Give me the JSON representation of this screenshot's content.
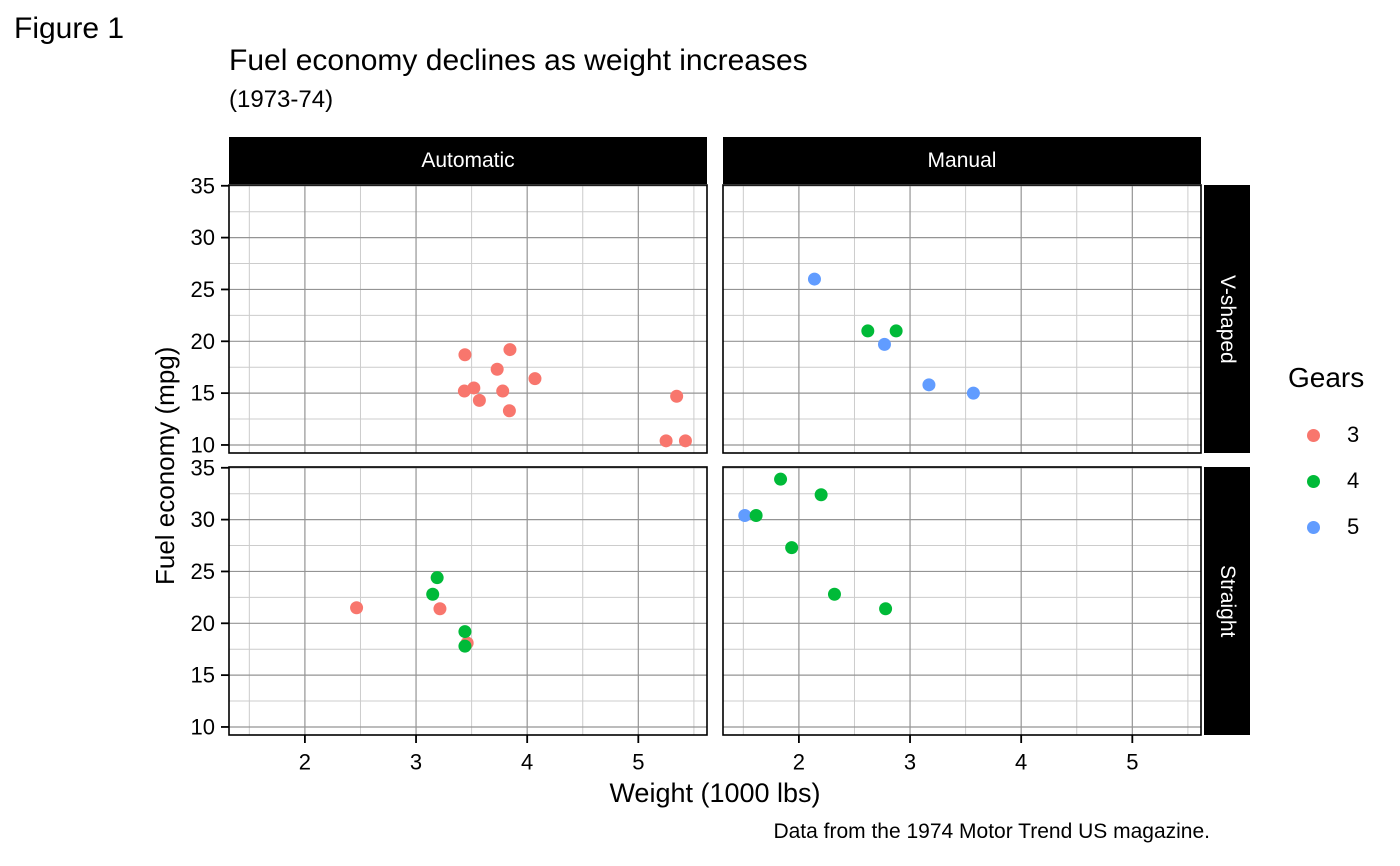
{
  "figure_label": "Figure 1",
  "title": "Fuel economy declines as weight increases",
  "subtitle": "(1973-74)",
  "caption": "Data from the 1974 Motor Trend US magazine.",
  "axes": {
    "x_title": "Weight (1000 lbs)",
    "y_title": "Fuel economy (mpg)"
  },
  "facets": {
    "columns": [
      "Automatic",
      "Manual"
    ],
    "rows": [
      "V-shaped",
      "Straight"
    ]
  },
  "legend": {
    "title": "Gears",
    "items": [
      {
        "label": "3",
        "color": "#F8766D"
      },
      {
        "label": "4",
        "color": "#00BA38"
      },
      {
        "label": "5",
        "color": "#619CFF"
      }
    ]
  },
  "colors": {
    "strip_background": "#000000",
    "strip_text": "#ffffff",
    "panel_background": "#ffffff",
    "panel_border": "#000000",
    "major_grid": "#949494",
    "minor_grid": "#cccccc",
    "tick_mark": "#000000"
  },
  "chart_data": {
    "type": "scatter",
    "title": "Fuel economy declines as weight increases",
    "xlabel": "Weight (1000 lbs)",
    "ylabel": "Fuel economy (mpg)",
    "color_legend": "Gears",
    "xlim": [
      1.317,
      5.618
    ],
    "ylim": [
      9.225,
      35.075
    ],
    "x_ticks": [
      2,
      3,
      4,
      5
    ],
    "y_ticks": [
      10,
      15,
      20,
      25,
      30,
      35
    ],
    "x_minor_ticks": [
      1.5,
      2.5,
      3.5,
      4.5,
      5.5
    ],
    "y_minor_ticks": [
      12.5,
      17.5,
      22.5,
      27.5,
      32.5
    ],
    "grid": true,
    "legend_position": "right",
    "facet_columns": [
      "Automatic",
      "Manual"
    ],
    "facet_rows": [
      "V-shaped",
      "Straight"
    ],
    "panels": [
      {
        "col": "Automatic",
        "row": "V-shaped",
        "points": [
          {
            "wt": 3.44,
            "mpg": 18.7,
            "gears": 3
          },
          {
            "wt": 3.57,
            "mpg": 14.3,
            "gears": 3
          },
          {
            "wt": 4.07,
            "mpg": 16.4,
            "gears": 3
          },
          {
            "wt": 3.73,
            "mpg": 17.3,
            "gears": 3
          },
          {
            "wt": 3.78,
            "mpg": 15.2,
            "gears": 3
          },
          {
            "wt": 5.25,
            "mpg": 10.4,
            "gears": 3
          },
          {
            "wt": 5.424,
            "mpg": 10.4,
            "gears": 3
          },
          {
            "wt": 5.345,
            "mpg": 14.7,
            "gears": 3
          },
          {
            "wt": 3.52,
            "mpg": 15.5,
            "gears": 3
          },
          {
            "wt": 3.435,
            "mpg": 15.2,
            "gears": 3
          },
          {
            "wt": 3.84,
            "mpg": 13.3,
            "gears": 3
          },
          {
            "wt": 3.845,
            "mpg": 19.2,
            "gears": 3
          }
        ]
      },
      {
        "col": "Manual",
        "row": "V-shaped",
        "points": [
          {
            "wt": 2.14,
            "mpg": 26.0,
            "gears": 5
          },
          {
            "wt": 2.77,
            "mpg": 19.7,
            "gears": 5
          },
          {
            "wt": 3.17,
            "mpg": 15.8,
            "gears": 5
          },
          {
            "wt": 3.57,
            "mpg": 15.0,
            "gears": 5
          },
          {
            "wt": 2.62,
            "mpg": 21.0,
            "gears": 4
          },
          {
            "wt": 2.875,
            "mpg": 21.0,
            "gears": 4
          }
        ]
      },
      {
        "col": "Automatic",
        "row": "Straight",
        "points": [
          {
            "wt": 3.215,
            "mpg": 21.4,
            "gears": 3
          },
          {
            "wt": 3.46,
            "mpg": 18.1,
            "gears": 3
          },
          {
            "wt": 2.465,
            "mpg": 21.5,
            "gears": 3
          },
          {
            "wt": 3.19,
            "mpg": 24.4,
            "gears": 4
          },
          {
            "wt": 3.15,
            "mpg": 22.8,
            "gears": 4
          },
          {
            "wt": 3.44,
            "mpg": 19.2,
            "gears": 4
          },
          {
            "wt": 3.44,
            "mpg": 17.8,
            "gears": 4
          }
        ]
      },
      {
        "col": "Manual",
        "row": "Straight",
        "points": [
          {
            "wt": 1.513,
            "mpg": 30.4,
            "gears": 5
          },
          {
            "wt": 2.32,
            "mpg": 22.8,
            "gears": 4
          },
          {
            "wt": 2.2,
            "mpg": 32.4,
            "gears": 4
          },
          {
            "wt": 1.615,
            "mpg": 30.4,
            "gears": 4
          },
          {
            "wt": 1.835,
            "mpg": 33.9,
            "gears": 4
          },
          {
            "wt": 1.935,
            "mpg": 27.3,
            "gears": 4
          },
          {
            "wt": 2.78,
            "mpg": 21.4,
            "gears": 4
          }
        ]
      }
    ]
  }
}
